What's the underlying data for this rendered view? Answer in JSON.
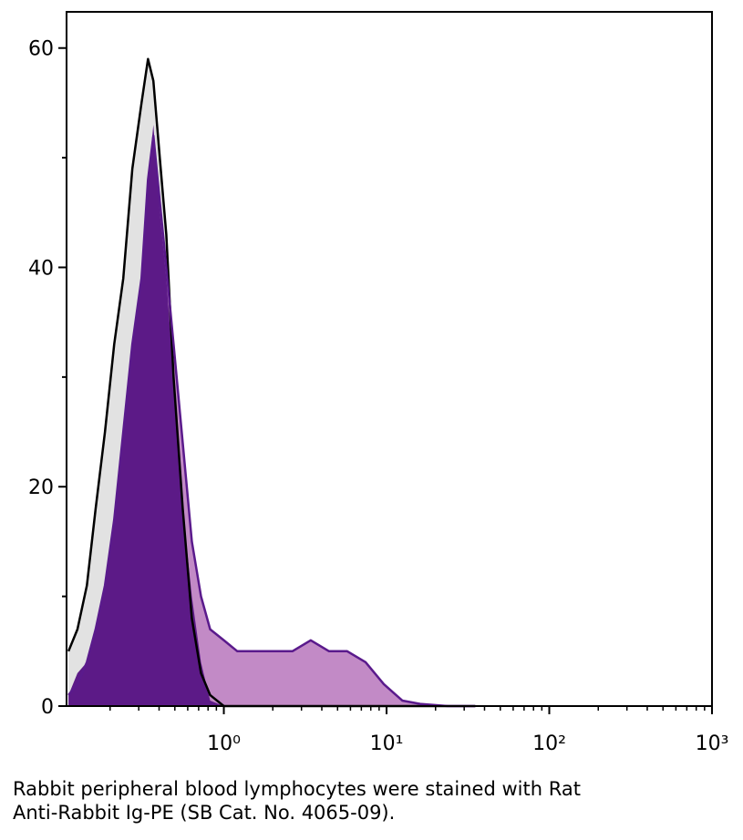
{
  "chart_data": {
    "type": "histogram-overlay",
    "xscale": "log",
    "xlim": [
      0.108,
      1000
    ],
    "ylim": [
      0,
      63.3
    ],
    "xticks": [
      {
        "value": 1,
        "label": "10⁰"
      },
      {
        "value": 10,
        "label": "10¹"
      },
      {
        "value": 100,
        "label": "10²"
      },
      {
        "value": 1000,
        "label": "10³"
      }
    ],
    "xminorticks": [
      0.2,
      0.3,
      0.4,
      0.5,
      0.6,
      0.7,
      0.8,
      0.9,
      2,
      3,
      4,
      5,
      6,
      7,
      8,
      9,
      20,
      30,
      40,
      50,
      60,
      70,
      80,
      90,
      200,
      300,
      400,
      500,
      600,
      700,
      800,
      900
    ],
    "yticks": [
      0,
      20,
      40,
      60
    ],
    "yminorticks": [
      10,
      30,
      50
    ],
    "x": [
      0.111,
      0.126,
      0.144,
      0.163,
      0.186,
      0.212,
      0.241,
      0.274,
      0.312,
      0.342,
      0.369,
      0.404,
      0.443,
      0.491,
      0.559,
      0.636,
      0.724,
      0.824,
      1,
      1.21,
      1.57,
      2.04,
      2.64,
      3.42,
      4.43,
      5.73,
      7.43,
      9.62,
      12.5,
      16.1,
      23.8,
      35.1
    ],
    "series": [
      {
        "fill": "#e2e2e2",
        "color": "#000000",
        "values": [
          5,
          7,
          11,
          18,
          25,
          33,
          39,
          49,
          55,
          59,
          57,
          50,
          43,
          30,
          18,
          8,
          3,
          1,
          0,
          0,
          0,
          0,
          0,
          0,
          0,
          0,
          0,
          0,
          0,
          0,
          0,
          0
        ]
      },
      {
        "fill": "#c28ac6",
        "color": "#5a1a8c",
        "values": [
          1,
          2,
          4,
          7,
          11,
          17,
          25,
          33,
          39,
          48,
          52,
          46,
          40,
          33,
          24,
          15,
          10,
          7,
          6,
          5,
          5,
          5,
          5,
          6,
          5,
          5,
          4,
          2,
          0.5,
          0.2,
          0,
          0
        ]
      },
      {
        "fill": "#5c1a87",
        "color": "#4a1580",
        "values": [
          1,
          3,
          4,
          7,
          11,
          17,
          25,
          33,
          39,
          48,
          53,
          45,
          39,
          30,
          18,
          10,
          4,
          0.5,
          0,
          0,
          0,
          0,
          0,
          0,
          0,
          0,
          0,
          0,
          0,
          0,
          0,
          0
        ]
      }
    ],
    "caption": [
      "Rabbit peripheral blood lymphocytes were stained with Rat",
      "Anti-Rabbit Ig-PE (SB Cat. No. 4065-09)."
    ]
  }
}
